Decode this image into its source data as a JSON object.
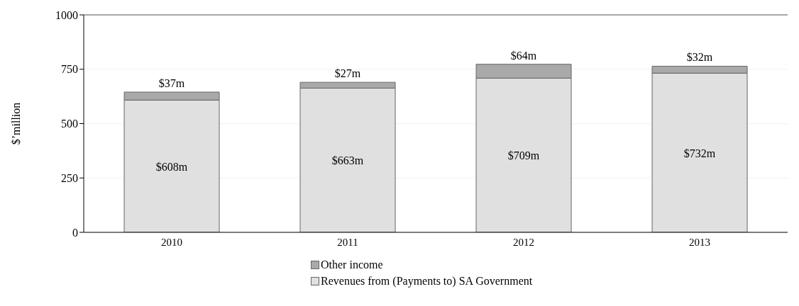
{
  "chart_data": {
    "type": "bar",
    "ylabel": "$’million",
    "categories": [
      "2010",
      "2011",
      "2012",
      "2013"
    ],
    "stacked": true,
    "series": [
      {
        "name": "Revenues from (Payments to) SA Government",
        "color": "#e0e0e0",
        "values": [
          608,
          663,
          709,
          732
        ],
        "value_labels": [
          "$608m",
          "$663m",
          "$709m",
          "$732m"
        ]
      },
      {
        "name": "Other income",
        "color": "#a9a9a9",
        "values": [
          37,
          27,
          64,
          32
        ],
        "value_labels": [
          "$37m",
          "$27m",
          "$64m",
          "$32m"
        ]
      }
    ],
    "ylim": [
      0,
      1000
    ],
    "yticks": [
      0,
      250,
      500,
      750,
      1000
    ],
    "grid": "y",
    "legend": "bottom"
  }
}
